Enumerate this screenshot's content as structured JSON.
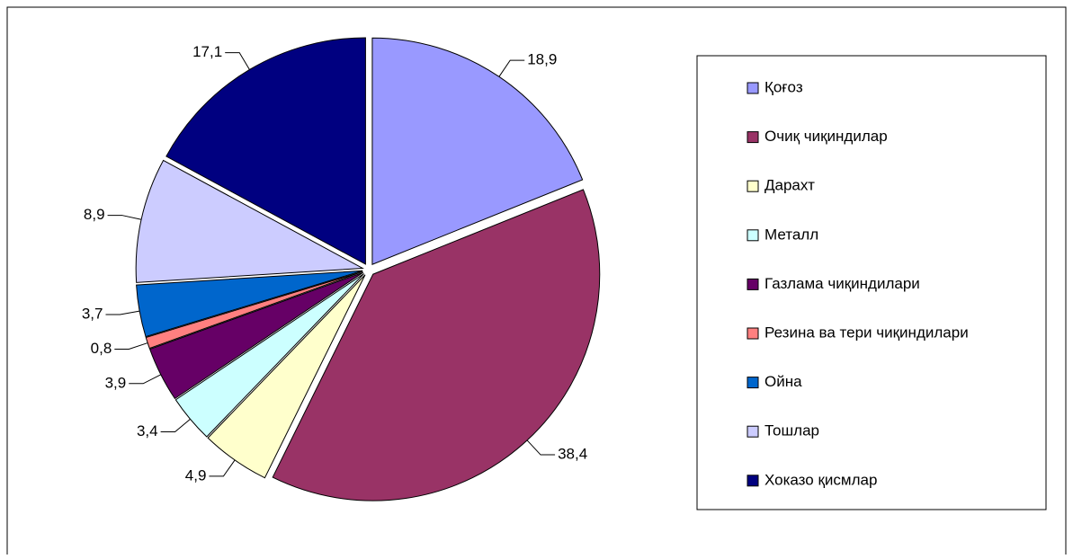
{
  "chart_data": {
    "type": "pie",
    "categories": [
      "Қоғоз",
      "Очиқ чиқиндилар",
      "Дарахт",
      "Металл",
      "Газлама чиқиндилари",
      "Резина ва тери чиқиндилари",
      "Ойна",
      "Тошлар",
      "Хоказо қисмлар"
    ],
    "values": [
      18.9,
      38.4,
      4.9,
      3.4,
      3.9,
      0.8,
      3.7,
      8.9,
      17.1
    ],
    "value_labels": [
      "18,9",
      "38,4",
      "4,9",
      "3,4",
      "3,9",
      "0,8",
      "3,7",
      "8,9",
      "17,1"
    ],
    "colors": [
      "#9999ff",
      "#993366",
      "#ffffcc",
      "#ccffff",
      "#660066",
      "#ff8080",
      "#0066cc",
      "#ccccff",
      "#000080"
    ],
    "legend": "right"
  }
}
